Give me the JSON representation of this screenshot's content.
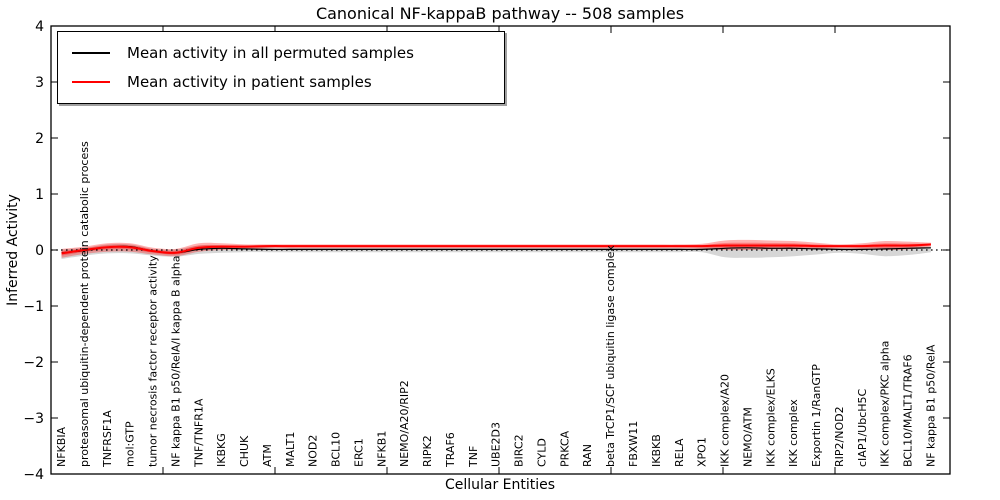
{
  "figure": {
    "title": "Canonical NF-kappaB pathway -- 508 samples",
    "xlabel": "Cellular Entities",
    "ylabel": "Inferred Activity"
  },
  "legend": {
    "items": [
      {
        "label": "Mean activity in all permuted samples",
        "color": "#000000"
      },
      {
        "label": "Mean activity in patient samples",
        "color": "#ff0000"
      }
    ]
  },
  "chart_data": {
    "type": "line",
    "title": "Canonical NF-kappaB pathway -- 508 samples",
    "xlabel": "Cellular Entities",
    "ylabel": "Inferred Activity",
    "ylim": [
      -4,
      4
    ],
    "yticks": [
      "4",
      "3",
      "2",
      "1",
      "0",
      "−1",
      "−2",
      "−3",
      "−4"
    ],
    "ytick_values": [
      4,
      3,
      2,
      1,
      0,
      -1,
      -2,
      -3,
      -4
    ],
    "grid": false,
    "legend_position": "upper left",
    "zero_line_style": "dotted",
    "colors": {
      "patient": "#ff0000",
      "permuted": "#000000",
      "permuted_band": "#999999"
    },
    "categories": [
      "NFKBIA",
      "proteasomal ubiquitin-dependent protein catabolic process",
      "TNFRSF1A",
      "mol:GTP",
      "tumor necrosis factor receptor activity",
      "NF kappa B1 p50/RelA/I kappa B alpha",
      "TNF/TNFR1A",
      "IKBKG",
      "CHUK",
      "ATM",
      "MALT1",
      "NOD2",
      "BCL10",
      "ERC1",
      "NFKB1",
      "NEMO/A20/RIP2",
      "RIPK2",
      "TRAF6",
      "TNF",
      "UBE2D3",
      "BIRC2",
      "CYLD",
      "PRKCA",
      "RAN",
      "beta TrCP1/SCF ubiquitin ligase complex",
      "FBXW11",
      "IKBKB",
      "RELA",
      "XPO1",
      "IKK complex/A20",
      "NEMO/ATM",
      "IKK complex/ELKS",
      "IKK complex",
      "Exportin 1/RanGTP",
      "RIP2/NOD2",
      "cIAP1/UbcH5C",
      "IKK complex/PKC alpha",
      "BCL10/MALT1/TRAF6",
      "NF kappa B1 p50/RelA"
    ],
    "series": [
      {
        "name": "Mean activity in all permuted samples",
        "color": "#000000",
        "values": [
          -0.05,
          -0.01,
          0.05,
          0.06,
          -0.02,
          -0.05,
          0.01,
          0.03,
          0.02,
          0.01,
          0.01,
          0.01,
          0.01,
          0.01,
          0.01,
          0.01,
          0.01,
          0.01,
          0.01,
          0.01,
          0.01,
          0.01,
          0.01,
          0.01,
          0.01,
          0.01,
          0.01,
          0.01,
          0.01,
          0.03,
          0.04,
          0.03,
          0.03,
          0.02,
          0.01,
          0.01,
          0.02,
          0.03,
          0.04
        ]
      },
      {
        "name": "Mean activity in patient samples",
        "color": "#ff0000",
        "values": [
          -0.06,
          0.0,
          0.05,
          0.05,
          -0.02,
          -0.05,
          0.04,
          0.06,
          0.06,
          0.07,
          0.07,
          0.07,
          0.07,
          0.07,
          0.07,
          0.07,
          0.07,
          0.07,
          0.07,
          0.07,
          0.07,
          0.07,
          0.07,
          0.07,
          0.07,
          0.07,
          0.07,
          0.07,
          0.07,
          0.08,
          0.08,
          0.08,
          0.08,
          0.07,
          0.07,
          0.07,
          0.08,
          0.08,
          0.1
        ]
      }
    ],
    "bands": [
      {
        "name": "permuted-range",
        "color": "#999999",
        "opacity": 0.4,
        "upper": [
          0.01,
          0.04,
          0.1,
          0.1,
          0.02,
          0.01,
          0.08,
          0.08,
          0.06,
          0.05,
          0.04,
          0.04,
          0.04,
          0.04,
          0.04,
          0.04,
          0.04,
          0.04,
          0.04,
          0.04,
          0.04,
          0.04,
          0.04,
          0.04,
          0.04,
          0.04,
          0.04,
          0.04,
          0.05,
          0.07,
          0.07,
          0.07,
          0.06,
          0.05,
          0.04,
          0.05,
          0.06,
          0.06,
          0.06
        ],
        "lower": [
          -0.16,
          -0.1,
          -0.06,
          -0.06,
          -0.1,
          -0.12,
          -0.07,
          -0.05,
          -0.04,
          -0.04,
          -0.04,
          -0.04,
          -0.04,
          -0.04,
          -0.04,
          -0.04,
          -0.04,
          -0.04,
          -0.04,
          -0.04,
          -0.04,
          -0.04,
          -0.04,
          -0.04,
          -0.04,
          -0.04,
          -0.04,
          -0.04,
          -0.04,
          -0.13,
          -0.14,
          -0.13,
          -0.11,
          -0.08,
          -0.05,
          -0.07,
          -0.11,
          -0.09,
          -0.04
        ]
      },
      {
        "name": "patient-range",
        "color": "#ff0000",
        "opacity": 0.3,
        "upper": [
          0.02,
          0.06,
          0.12,
          0.12,
          0.04,
          0.02,
          0.12,
          0.12,
          0.1,
          0.1,
          0.1,
          0.1,
          0.1,
          0.1,
          0.1,
          0.1,
          0.1,
          0.1,
          0.1,
          0.1,
          0.1,
          0.1,
          0.1,
          0.1,
          0.1,
          0.1,
          0.1,
          0.1,
          0.11,
          0.17,
          0.18,
          0.17,
          0.16,
          0.13,
          0.1,
          0.12,
          0.16,
          0.15,
          0.13
        ],
        "lower": [
          -0.14,
          -0.07,
          -0.03,
          -0.03,
          -0.08,
          -0.11,
          -0.03,
          0.0,
          0.01,
          0.03,
          0.03,
          0.03,
          0.03,
          0.03,
          0.03,
          0.03,
          0.03,
          0.03,
          0.03,
          0.03,
          0.03,
          0.03,
          0.03,
          0.03,
          0.03,
          0.03,
          0.03,
          0.03,
          0.02,
          0.0,
          0.0,
          0.01,
          0.01,
          0.02,
          0.03,
          0.02,
          0.0,
          0.01,
          0.06
        ]
      }
    ]
  }
}
